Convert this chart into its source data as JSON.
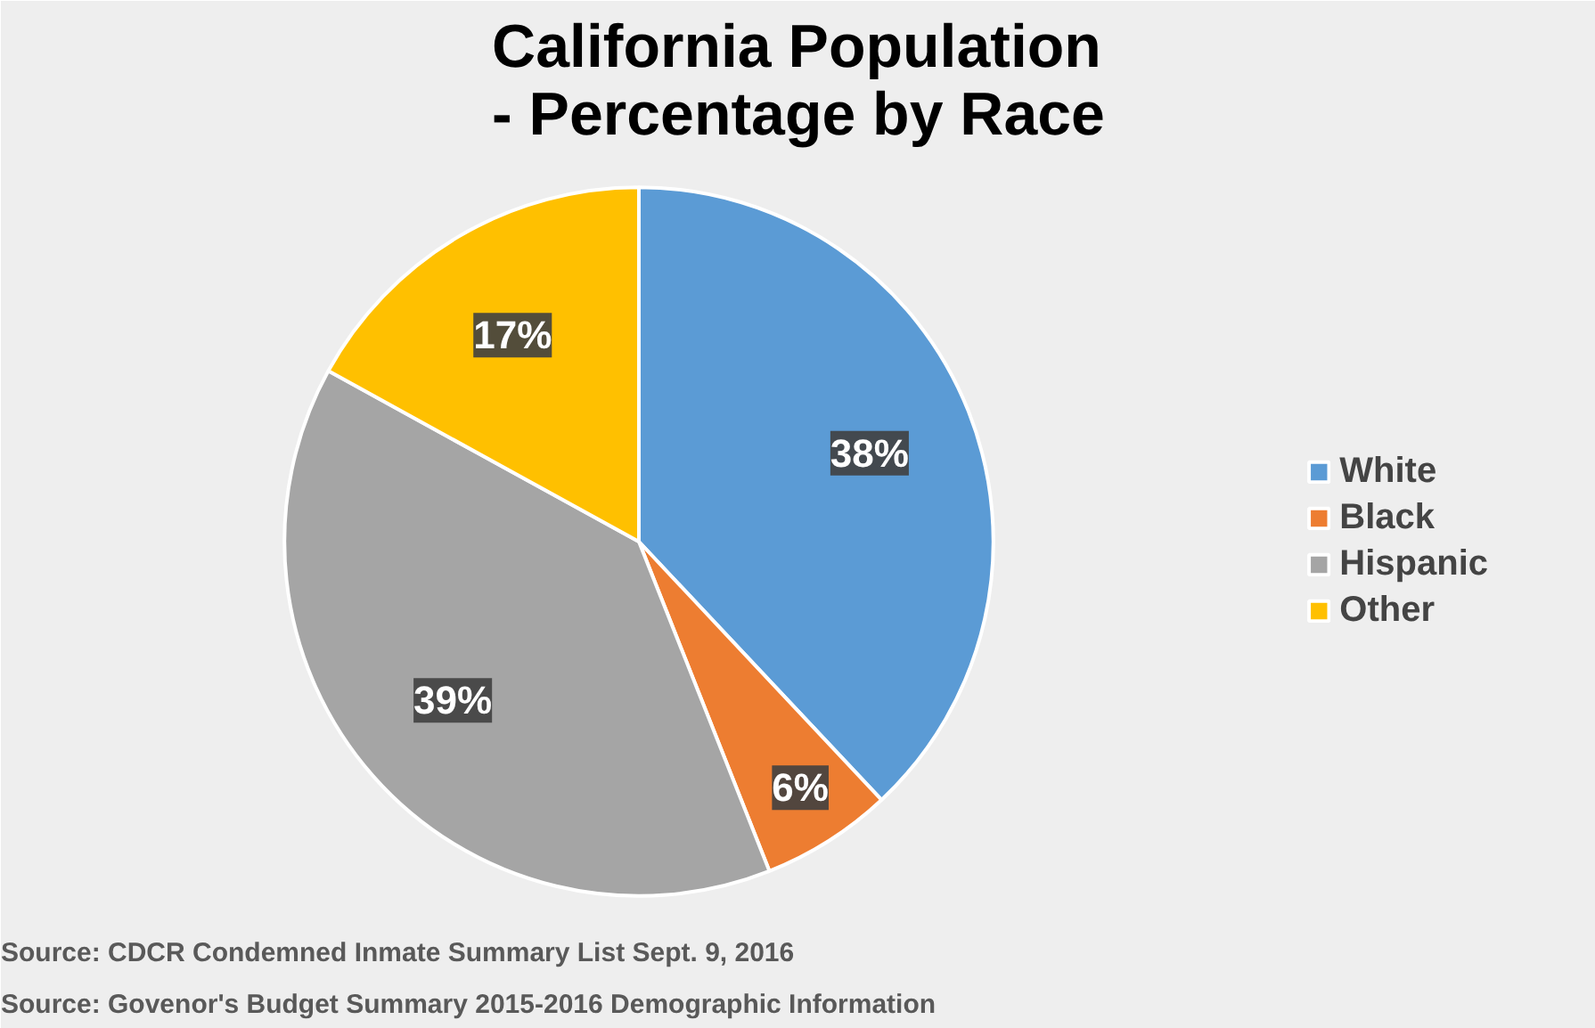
{
  "chart_data": {
    "type": "pie",
    "title": "California Population\n- Percentage by Race",
    "categories": [
      "White",
      "Black",
      "Hispanic",
      "Other"
    ],
    "values": [
      38,
      6,
      39,
      17
    ],
    "colors": [
      "#5b9bd5",
      "#ed7d31",
      "#a5a5a5",
      "#ffc000"
    ],
    "value_labels": [
      "38%",
      "6%",
      "39%",
      "17%"
    ],
    "legend": "right",
    "annotations": [
      "Source: CDCR Condemned Inmate Summary List Sept. 9, 2016",
      "Source: Govenor's Budget Summary 2015-2016 Demographic  Information"
    ]
  }
}
